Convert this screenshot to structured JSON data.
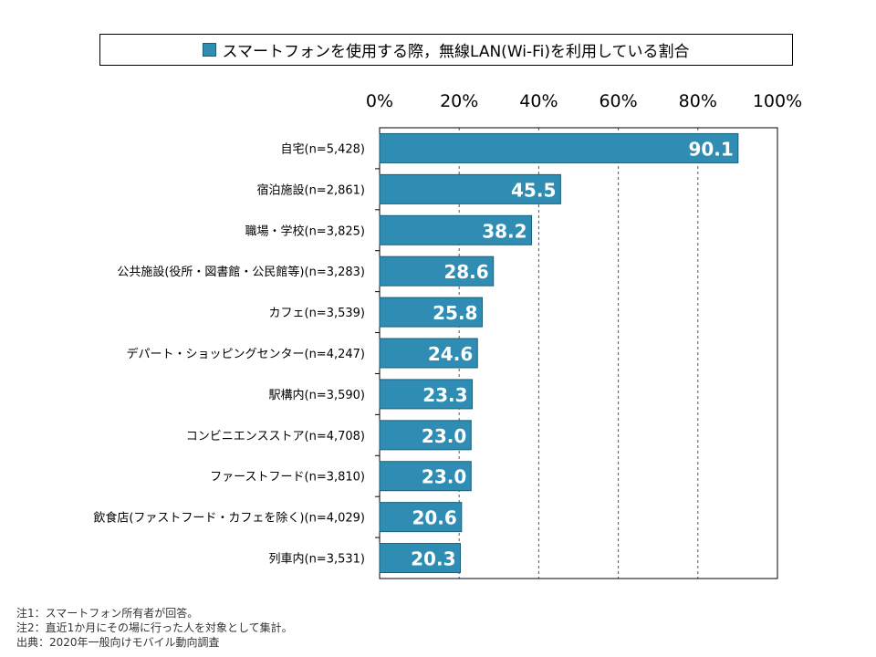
{
  "legend": {
    "label": "スマートフォンを使用する際，無線LAN(Wi-Fi)を利用している割合",
    "color": "#2f8db4"
  },
  "chart_data": {
    "type": "bar",
    "orientation": "horizontal",
    "categories": [
      "自宅(n=5,428)",
      "宿泊施設(n=2,861)",
      "職場・学校(n=3,825)",
      "公共施設(役所・図書館・公民館等)(n=3,283)",
      "カフェ(n=3,539)",
      "デパート・ショッピングセンター(n=4,247)",
      "駅構内(n=3,590)",
      "コンビニエンスストア(n=4,708)",
      "ファーストフード(n=3,810)",
      "飲食店(ファストフード・カフェを除く)(n=4,029)",
      "列車内(n=3,531)"
    ],
    "series": [
      {
        "name": "スマートフォンを使用する際，無線LAN(Wi-Fi)を利用している割合",
        "values": [
          90.1,
          45.5,
          38.2,
          28.6,
          25.8,
          24.6,
          23.3,
          23.0,
          23.0,
          20.6,
          20.3
        ],
        "labels": [
          "90.1",
          "45.5",
          "38.2",
          "28.6",
          "25.8",
          "24.6",
          "23.3",
          "23.0",
          "23.0",
          "20.6",
          "20.3"
        ]
      }
    ],
    "xlim": [
      0,
      100
    ],
    "ticks": [
      "0%",
      "20%",
      "40%",
      "60%",
      "80%",
      "100%"
    ],
    "grid": true,
    "legend_position": "top"
  },
  "notes": [
    "注1：スマートフォン所有者が回答。",
    "注2：直近1か月にその場に行った人を対象として集計。",
    "出典：2020年一般向けモバイル動向調査"
  ]
}
